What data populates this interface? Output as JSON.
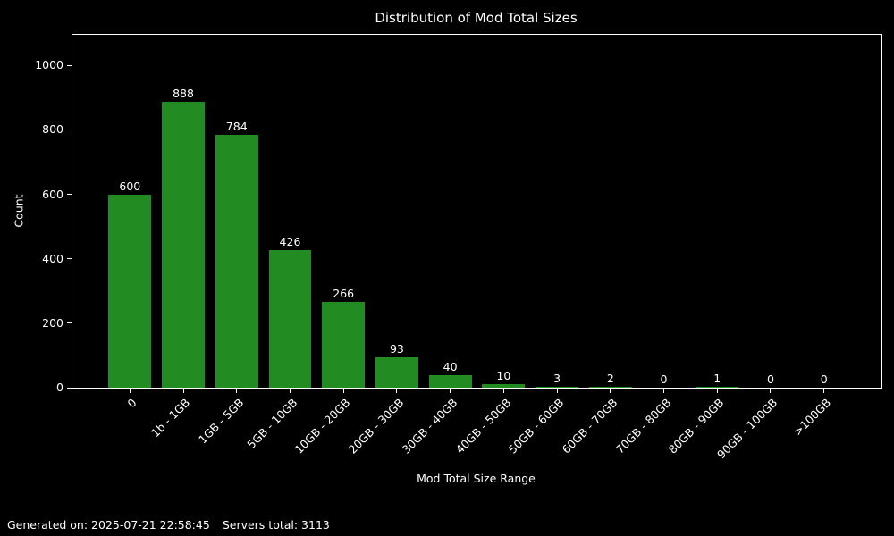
{
  "footer": {
    "generated": "Generated on: 2025-07-21 22:58:45",
    "servers_total": "Servers total: 3113"
  },
  "chart_data": {
    "type": "bar",
    "title": "Distribution of Mod Total Sizes",
    "categories": [
      "0",
      "1b - 1GB",
      "1GB - 5GB",
      "5GB - 10GB",
      "10GB - 20GB",
      "20GB - 30GB",
      "30GB - 40GB",
      "40GB - 50GB",
      "50GB - 60GB",
      "60GB - 70GB",
      "70GB - 80GB",
      "80GB - 90GB",
      "90GB - 100GB",
      ">100GB"
    ],
    "values": [
      600,
      888,
      784,
      426,
      266,
      93,
      40,
      10,
      3,
      2,
      0,
      1,
      0,
      0
    ],
    "xlabel": "Mod Total Size Range",
    "ylabel": "Count",
    "ylim": [
      0,
      1095
    ],
    "yticks": [
      0,
      200,
      400,
      600,
      800,
      1000
    ],
    "bar_labels": true,
    "grid": false,
    "legend": null,
    "bar_color": "#228B22",
    "background_color": "#000000",
    "text_color": "#ffffff",
    "axis_color": "#ffffff"
  }
}
